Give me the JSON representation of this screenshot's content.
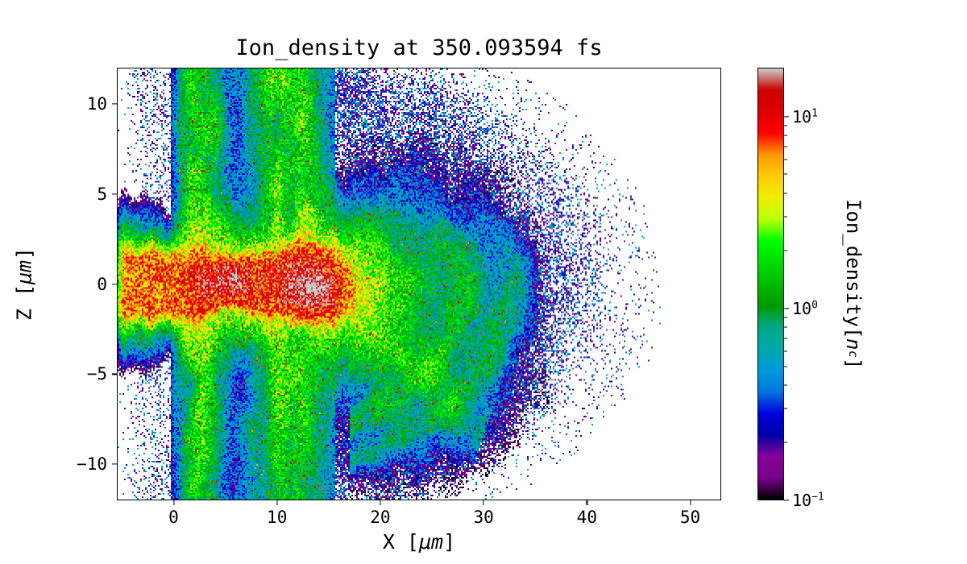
{
  "chart_data": {
    "type": "heatmap",
    "title": "Ion_density at 350.093594 fs",
    "xlabel_parts": {
      "prefix": "X [",
      "unit": "μm",
      "suffix": "]"
    },
    "ylabel_parts": {
      "prefix": "Z [",
      "unit": "μm",
      "suffix": "]"
    },
    "xlim": [
      -5.5,
      53
    ],
    "ylim": [
      -12,
      12
    ],
    "x_ticks": [
      0,
      10,
      20,
      30,
      40,
      50
    ],
    "x_tick_labels": [
      "0",
      "10",
      "20",
      "30",
      "40",
      "50"
    ],
    "y_ticks": [
      -10,
      -5,
      0,
      5,
      10
    ],
    "y_tick_labels": [
      "−10",
      "−5",
      "0",
      "5",
      "10"
    ],
    "grid": false,
    "colorbar": {
      "label_parts": {
        "prefix": "Ion_density[",
        "symbol": "n",
        "subscript": "c",
        "suffix": "]"
      },
      "scale": "log",
      "vmin": 0.1,
      "vmax": 18,
      "ticks": [
        {
          "value": 10,
          "base": "10",
          "exp": "1"
        },
        {
          "value": 1,
          "base": "10",
          "exp": "0"
        },
        {
          "value": 0.1,
          "base": "10",
          "exp": "−1"
        }
      ]
    },
    "colormap": {
      "name": "nipy_spectral",
      "stops": [
        [
          0.0,
          0,
          0,
          0
        ],
        [
          0.05,
          119,
          0,
          136
        ],
        [
          0.1,
          136,
          0,
          153
        ],
        [
          0.15,
          0,
          0,
          170
        ],
        [
          0.2,
          0,
          0,
          221
        ],
        [
          0.25,
          0,
          119,
          221
        ],
        [
          0.3,
          0,
          153,
          221
        ],
        [
          0.35,
          0,
          170,
          170
        ],
        [
          0.4,
          0,
          170,
          136
        ],
        [
          0.45,
          0,
          153,
          0
        ],
        [
          0.5,
          0,
          187,
          0
        ],
        [
          0.55,
          0,
          221,
          0
        ],
        [
          0.6,
          0,
          255,
          0
        ],
        [
          0.65,
          187,
          255,
          0
        ],
        [
          0.7,
          238,
          238,
          0
        ],
        [
          0.75,
          255,
          204,
          0
        ],
        [
          0.8,
          255,
          153,
          0
        ],
        [
          0.85,
          255,
          0,
          0
        ],
        [
          0.9,
          221,
          0,
          0
        ],
        [
          0.95,
          204,
          0,
          0
        ],
        [
          1.0,
          204,
          204,
          204
        ]
      ]
    },
    "features": [
      {
        "name": "central-plasma-jet",
        "x_range": [
          -5.5,
          18.5
        ],
        "z_range": [
          -2.5,
          2.5
        ],
        "peak_density_nc": 18,
        "color": "red-yellow"
      },
      {
        "name": "jet-sheath",
        "z_half_width_um": 3.3,
        "density_nc": 2,
        "color": "green"
      },
      {
        "name": "target-columns",
        "x_range": [
          0,
          15.5
        ],
        "z_range": [
          -12,
          12
        ],
        "density_nc": 1.5,
        "color": "green-cyan mottled"
      },
      {
        "name": "expansion-plume",
        "x_range": [
          15,
          33
        ],
        "z_range": [
          -9,
          4
        ],
        "density_nc": 0.5,
        "color": "cyan-blue filaments"
      },
      {
        "name": "ion-front-speckle",
        "ellipse_rx_um": 46.5,
        "ellipse_rz_um": 16.5,
        "density_nc": 0.15,
        "color": "blue-purple speckle"
      }
    ],
    "render": {
      "seed": 7,
      "front_rx": 46.5,
      "front_rz": 16.5,
      "jet_x_end": 18.5,
      "jet_half_width": 2.0,
      "jet_peak": 8,
      "sheath_half_width": 3.3,
      "col_x_max": 15.6,
      "white_cutoff": 0.095
    }
  }
}
